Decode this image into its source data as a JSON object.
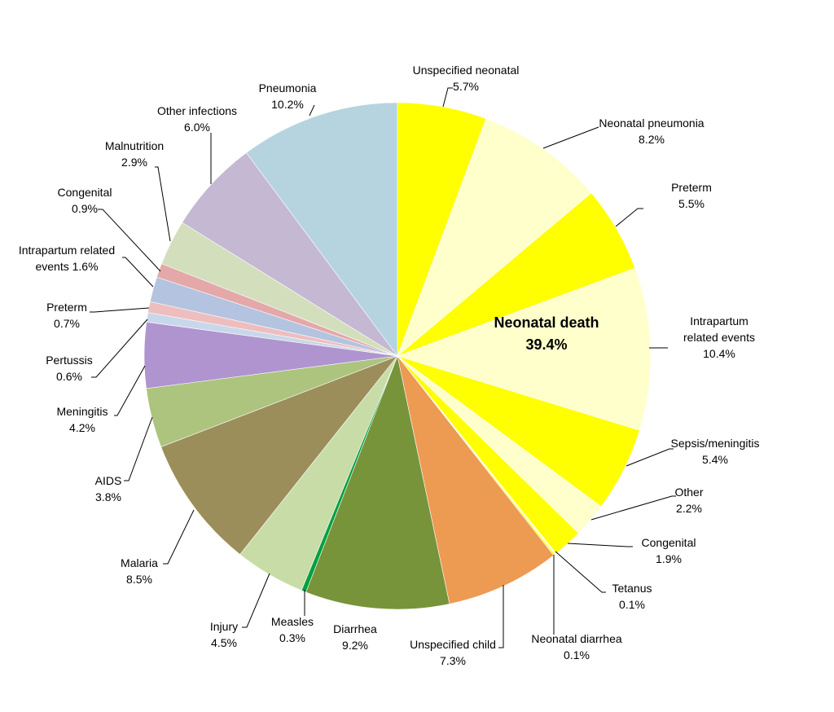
{
  "chart_data": {
    "type": "pie",
    "title": "",
    "start_angle_deg": 0,
    "direction": "clockwise",
    "center_label": {
      "name": "Neonatal death",
      "value": "39.4%"
    },
    "slices": [
      {
        "label": "Unspecified neonatal",
        "value": 5.7,
        "value_text": "5.7%",
        "color": "#FFFF00",
        "group": "neonatal"
      },
      {
        "label": "Neonatal pneumonia",
        "value": 8.2,
        "value_text": "8.2%",
        "color": "#FFFFCC",
        "group": "neonatal"
      },
      {
        "label": "Preterm",
        "value": 5.5,
        "value_text": "5.5%",
        "color": "#FFFF00",
        "group": "neonatal"
      },
      {
        "label": "Intrapartum related events",
        "value": 10.4,
        "value_text": "10.4%",
        "color": "#FFFFCC",
        "group": "neonatal"
      },
      {
        "label": "Sepsis/meningitis",
        "value": 5.4,
        "value_text": "5.4%",
        "color": "#FFFF00",
        "group": "neonatal"
      },
      {
        "label": "Other",
        "value": 2.2,
        "value_text": "2.2%",
        "color": "#FFFFCC",
        "group": "neonatal"
      },
      {
        "label": "Congenital",
        "value": 1.9,
        "value_text": "1.9%",
        "color": "#FFFF00",
        "group": "neonatal"
      },
      {
        "label": "Tetanus",
        "value": 0.1,
        "value_text": "0.1%",
        "color": "#FFFFCC",
        "group": "neonatal"
      },
      {
        "label": "Neonatal diarrhea",
        "value": 0.1,
        "value_text": "0.1%",
        "color": "#FFFF00",
        "group": "neonatal"
      },
      {
        "label": "Unspecified child",
        "value": 7.3,
        "value_text": "7.3%",
        "color": "#ED9A52",
        "group": "child"
      },
      {
        "label": "Diarrhea",
        "value": 9.2,
        "value_text": "9.2%",
        "color": "#77943B",
        "group": "child"
      },
      {
        "label": "Measles",
        "value": 0.3,
        "value_text": "0.3%",
        "color": "#00A040",
        "group": "child"
      },
      {
        "label": "Injury",
        "value": 4.5,
        "value_text": "4.5%",
        "color": "#C8DCA8",
        "group": "child"
      },
      {
        "label": "Malaria",
        "value": 8.5,
        "value_text": "8.5%",
        "color": "#9C8E5A",
        "group": "child"
      },
      {
        "label": "AIDS",
        "value": 3.8,
        "value_text": "3.8%",
        "color": "#ACC47E",
        "group": "child"
      },
      {
        "label": "Meningitis",
        "value": 4.2,
        "value_text": "4.2%",
        "color": "#B094CF",
        "group": "child"
      },
      {
        "label": "Pertussis",
        "value": 0.6,
        "value_text": "0.6%",
        "color": "#C8D8EA",
        "group": "child"
      },
      {
        "label": "Preterm",
        "value": 0.7,
        "value_text": "0.7%",
        "color": "#EEBEBE",
        "group": "child"
      },
      {
        "label": "Intrapartum related events",
        "value": 1.6,
        "value_text": "1.6%",
        "color": "#B4C3DF",
        "group": "child"
      },
      {
        "label": "Congenital",
        "value": 0.9,
        "value_text": "0.9%",
        "color": "#E4A8A8",
        "group": "child"
      },
      {
        "label": "Malnutrition",
        "value": 2.9,
        "value_text": "2.9%",
        "color": "#D3DEBC",
        "group": "child"
      },
      {
        "label": "Other infections",
        "value": 6.0,
        "value_text": "6.0%",
        "color": "#C4B8D2",
        "group": "child"
      },
      {
        "label": "Pneumonia",
        "value": 10.2,
        "value_text": "10.2%",
        "color": "#B6D4DF",
        "group": "child"
      }
    ]
  }
}
